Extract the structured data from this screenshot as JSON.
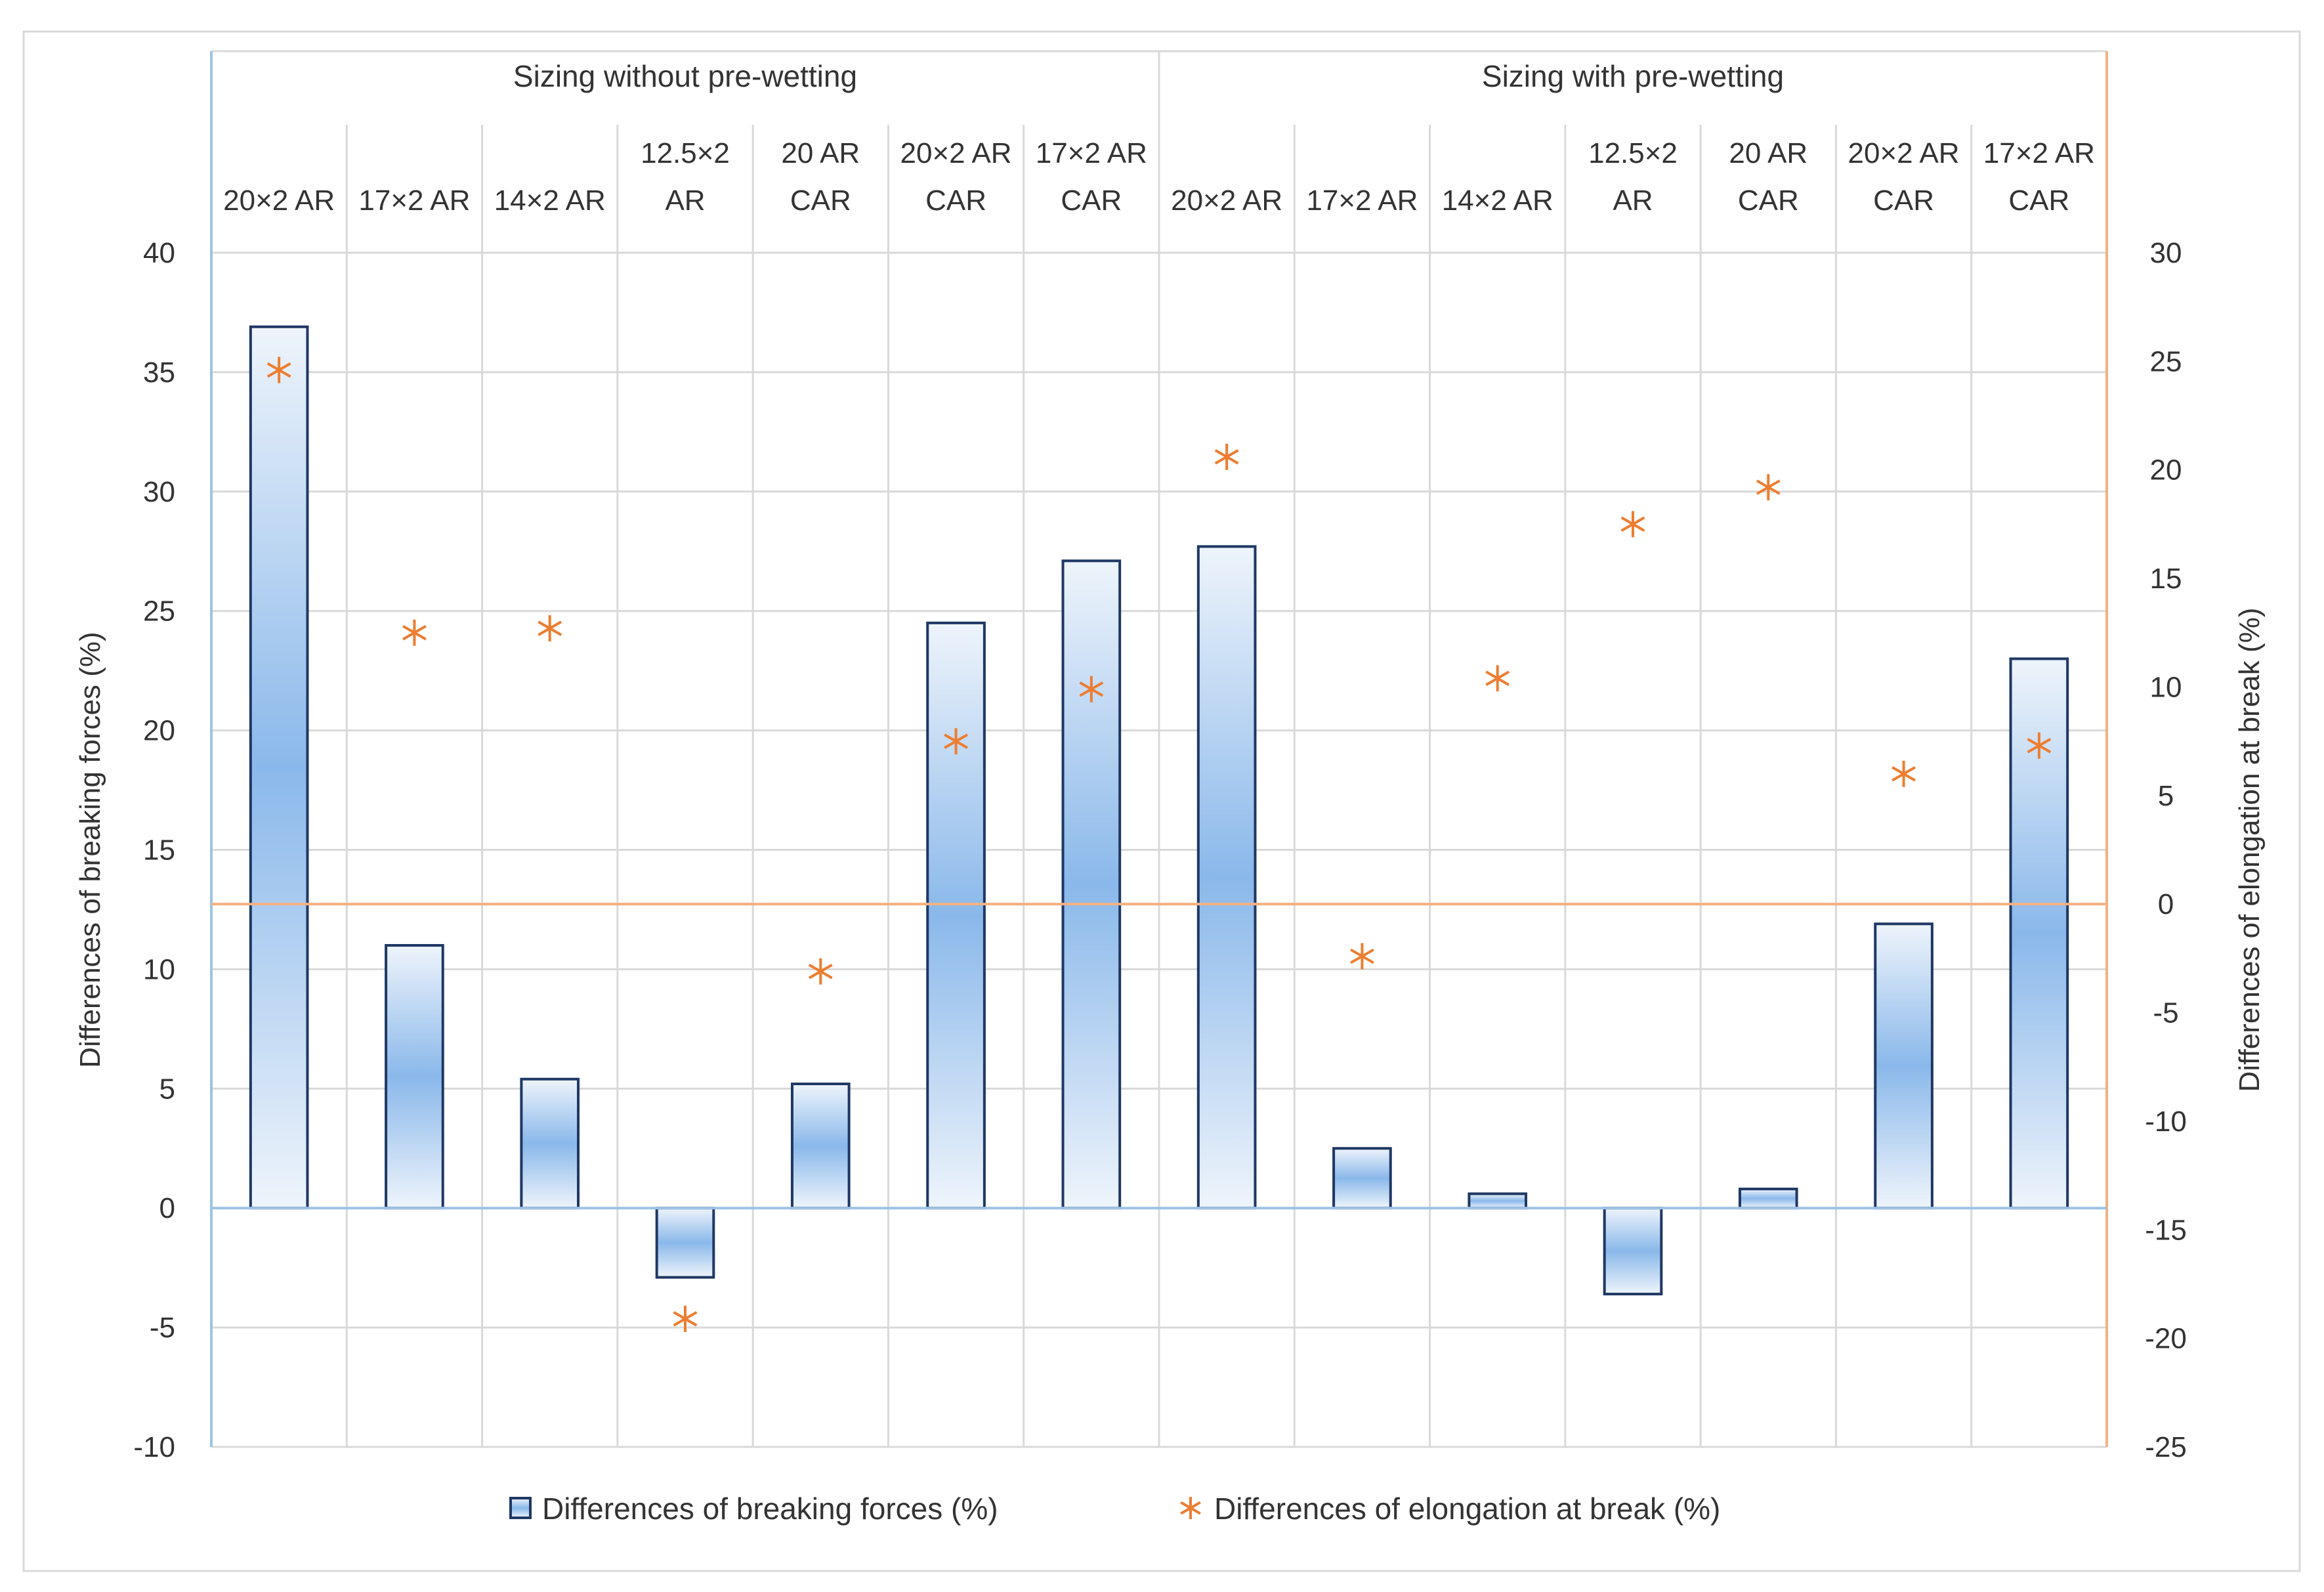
{
  "chart_data": {
    "type": "bar",
    "groups": [
      {
        "name": "Sizing without pre-wetting",
        "categories": [
          "20×2 AR",
          "17×2 AR",
          "14×2 AR",
          "12.5×2 AR",
          "20 AR CAR",
          "20×2 AR CAR",
          "17×2 AR CAR"
        ]
      },
      {
        "name": "Sizing with pre-wetting",
        "categories": [
          "20×2 AR",
          "17×2 AR",
          "14×2 AR",
          "12.5×2 AR",
          "20 AR CAR",
          "20×2 AR CAR",
          "17×2 AR CAR"
        ]
      }
    ],
    "category_label_lines": [
      [
        "20×2 AR"
      ],
      [
        "17×2 AR"
      ],
      [
        "14×2 AR"
      ],
      [
        "12.5×2",
        "AR"
      ],
      [
        "20 AR",
        "CAR"
      ],
      [
        "20×2 AR",
        "CAR"
      ],
      [
        "17×2 AR",
        "CAR"
      ],
      [
        "20×2 AR"
      ],
      [
        "17×2 AR"
      ],
      [
        "14×2 AR"
      ],
      [
        "12.5×2",
        "AR"
      ],
      [
        "20 AR",
        "CAR"
      ],
      [
        "20×2 AR",
        "CAR"
      ],
      [
        "17×2 AR",
        "CAR"
      ]
    ],
    "series": [
      {
        "name": "Differences of breaking forces (%)",
        "type": "bar",
        "axis": "left",
        "color": "#1f3864",
        "values": [
          36.9,
          11.0,
          5.4,
          -2.9,
          5.2,
          24.5,
          27.1,
          27.7,
          2.5,
          0.6,
          -3.6,
          0.8,
          11.9,
          23.0
        ]
      },
      {
        "name": "Differences of elongation at break (%)",
        "type": "scatter",
        "axis": "right",
        "color": "#ed7d31",
        "values": [
          24.6,
          12.5,
          12.7,
          -19.1,
          -3.1,
          7.5,
          9.9,
          20.6,
          -2.4,
          10.4,
          17.5,
          19.2,
          6.0,
          7.3
        ]
      }
    ],
    "y_left": {
      "label": "Differences of breaking forces (%)",
      "range": [
        -10,
        40
      ],
      "ticks": [
        -10,
        -5,
        0,
        5,
        10,
        15,
        20,
        25,
        30,
        35,
        40
      ]
    },
    "y_right": {
      "label": "Differences of elongation at break (%)",
      "range": [
        -25,
        30
      ],
      "ticks": [
        -25,
        -20,
        -15,
        -10,
        -5,
        0,
        5,
        10,
        15,
        20,
        25,
        30
      ]
    },
    "grid": true,
    "legend_position": "bottom"
  }
}
